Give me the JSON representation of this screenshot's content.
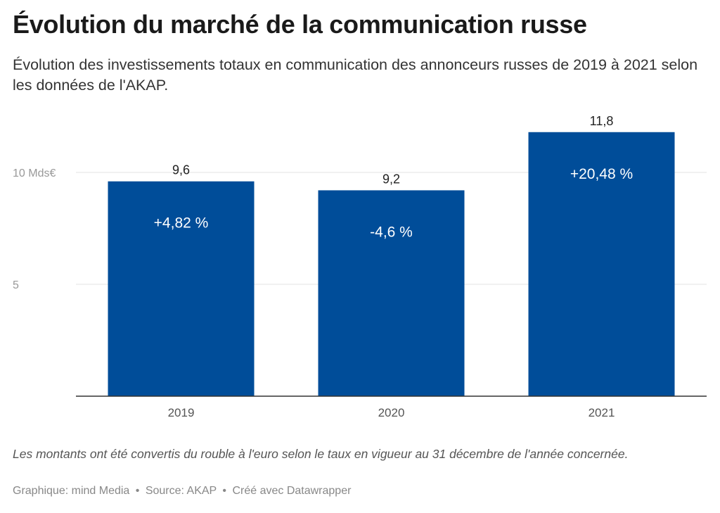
{
  "header": {
    "title": "Évolution du marché de la communication russe",
    "subtitle": "Évolution des investissements totaux en communication des annonceurs russes de 2019 à 2021 selon les données de l'AKAP."
  },
  "footer": {
    "note": "Les montants ont été convertis du rouble à l'euro selon le taux en vigueur au 31 décembre de l'année concernée.",
    "credit_graphic": "Graphique: mind Media",
    "credit_source": "Source: AKAP",
    "credit_tool": "Créé avec Datawrapper",
    "separator": "•"
  },
  "chart_data": {
    "type": "bar",
    "categories": [
      "2019",
      "2020",
      "2021"
    ],
    "values": [
      9.6,
      9.2,
      11.8
    ],
    "value_labels": [
      "9,6",
      "9,2",
      "11,8"
    ],
    "change_labels": [
      "+4,82 %",
      "-4,6 %",
      "+20,48 %"
    ],
    "y_ticks": [
      {
        "value": 5,
        "label": "5"
      },
      {
        "value": 10,
        "label": "10 Mds€"
      }
    ],
    "ylim": [
      0,
      12.5
    ],
    "grid": true,
    "bar_color": "#004d99",
    "change_label_color": "#ffffff"
  }
}
